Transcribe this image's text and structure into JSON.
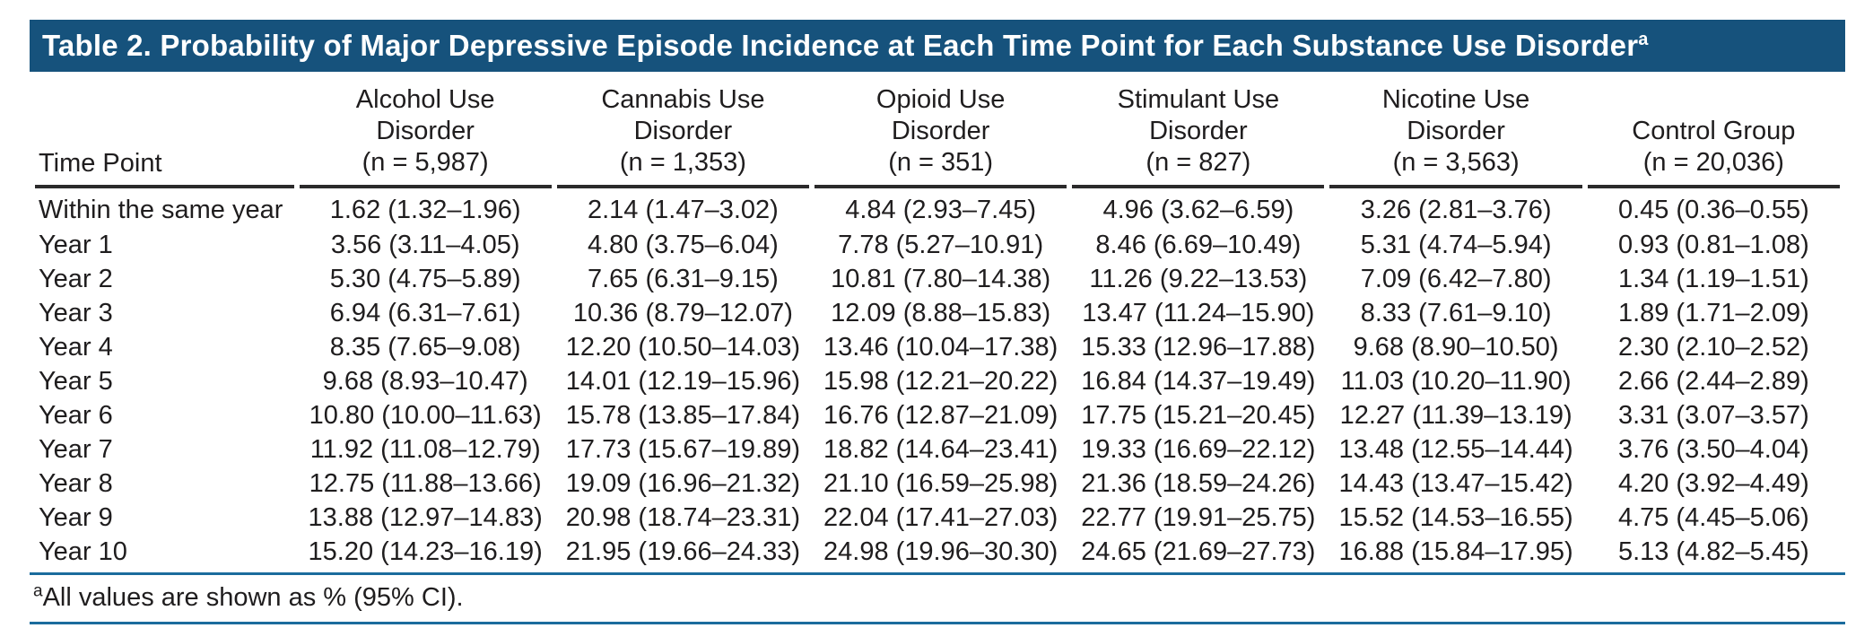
{
  "title": {
    "text": "Table 2. Probability of Major Depressive Episode Incidence at Each Time Point for Each Substance Use Disorder",
    "superscript": "a"
  },
  "colors": {
    "header_bar": "#16527C",
    "rule_blue": "#1B6C9D",
    "rule_black": "#2B2A2B",
    "text": "#1F1D1E"
  },
  "table": {
    "row_header_label": "Time Point",
    "columns": [
      {
        "l1": "Alcohol Use",
        "l2": "Disorder",
        "n": "(n = 5,987)"
      },
      {
        "l1": "Cannabis Use",
        "l2": "Disorder",
        "n": "(n = 1,353)"
      },
      {
        "l1": "Opioid Use",
        "l2": "Disorder",
        "n": "(n = 351)"
      },
      {
        "l1": "Stimulant Use",
        "l2": "Disorder",
        "n": "(n = 827)"
      },
      {
        "l1": "Nicotine Use",
        "l2": "Disorder",
        "n": "(n = 3,563)"
      },
      {
        "l1": "",
        "l2": "Control Group",
        "n": "(n = 20,036)"
      }
    ],
    "rows": [
      {
        "time_point": "Within the same year",
        "alcohol": "1.62 (1.32–1.96)",
        "cannabis": "2.14 (1.47–3.02)",
        "opioid": "4.84 (2.93–7.45)",
        "stimulant": "4.96 (3.62–6.59)",
        "nicotine": "3.26 (2.81–3.76)",
        "control": "0.45 (0.36–0.55)"
      },
      {
        "time_point": "Year 1",
        "alcohol": "3.56 (3.11–4.05)",
        "cannabis": "4.80 (3.75–6.04)",
        "opioid": "7.78 (5.27–10.91)",
        "stimulant": "8.46 (6.69–10.49)",
        "nicotine": "5.31 (4.74–5.94)",
        "control": "0.93 (0.81–1.08)"
      },
      {
        "time_point": "Year 2",
        "alcohol": "5.30 (4.75–5.89)",
        "cannabis": "7.65 (6.31–9.15)",
        "opioid": "10.81 (7.80–14.38)",
        "stimulant": "11.26 (9.22–13.53)",
        "nicotine": "7.09 (6.42–7.80)",
        "control": "1.34 (1.19–1.51)"
      },
      {
        "time_point": "Year 3",
        "alcohol": "6.94 (6.31–7.61)",
        "cannabis": "10.36 (8.79–12.07)",
        "opioid": "12.09 (8.88–15.83)",
        "stimulant": "13.47 (11.24–15.90)",
        "nicotine": "8.33 (7.61–9.10)",
        "control": "1.89 (1.71–2.09)"
      },
      {
        "time_point": "Year 4",
        "alcohol": "8.35 (7.65–9.08)",
        "cannabis": "12.20 (10.50–14.03)",
        "opioid": "13.46 (10.04–17.38)",
        "stimulant": "15.33 (12.96–17.88)",
        "nicotine": "9.68 (8.90–10.50)",
        "control": "2.30 (2.10–2.52)"
      },
      {
        "time_point": "Year 5",
        "alcohol": "9.68 (8.93–10.47)",
        "cannabis": "14.01 (12.19–15.96)",
        "opioid": "15.98 (12.21–20.22)",
        "stimulant": "16.84 (14.37–19.49)",
        "nicotine": "11.03 (10.20–11.90)",
        "control": "2.66 (2.44–2.89)"
      },
      {
        "time_point": "Year 6",
        "alcohol": "10.80 (10.00–11.63)",
        "cannabis": "15.78 (13.85–17.84)",
        "opioid": "16.76 (12.87–21.09)",
        "stimulant": "17.75 (15.21–20.45)",
        "nicotine": "12.27 (11.39–13.19)",
        "control": "3.31 (3.07–3.57)"
      },
      {
        "time_point": "Year 7",
        "alcohol": "11.92 (11.08–12.79)",
        "cannabis": "17.73 (15.67–19.89)",
        "opioid": "18.82 (14.64–23.41)",
        "stimulant": "19.33 (16.69–22.12)",
        "nicotine": "13.48 (12.55–14.44)",
        "control": "3.76 (3.50–4.04)"
      },
      {
        "time_point": "Year 8",
        "alcohol": "12.75 (11.88–13.66)",
        "cannabis": "19.09 (16.96–21.32)",
        "opioid": "21.10 (16.59–25.98)",
        "stimulant": "21.36 (18.59–24.26)",
        "nicotine": "14.43 (13.47–15.42)",
        "control": "4.20 (3.92–4.49)"
      },
      {
        "time_point": "Year 9",
        "alcohol": "13.88 (12.97–14.83)",
        "cannabis": "20.98 (18.74–23.31)",
        "opioid": "22.04 (17.41–27.03)",
        "stimulant": "22.77 (19.91–25.75)",
        "nicotine": "15.52 (14.53–16.55)",
        "control": "4.75 (4.45–5.06)"
      },
      {
        "time_point": "Year 10",
        "alcohol": "15.20 (14.23–16.19)",
        "cannabis": "21.95 (19.66–24.33)",
        "opioid": "24.98 (19.96–30.30)",
        "stimulant": "24.65 (21.69–27.73)",
        "nicotine": "16.88 (15.84–17.95)",
        "control": "5.13 (4.82–5.45)"
      }
    ]
  },
  "footnote": {
    "superscript": "a",
    "text": "All values are shown as % (95% CI)."
  }
}
